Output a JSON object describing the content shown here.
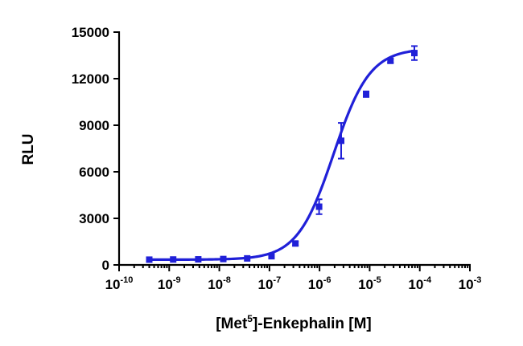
{
  "chart_data": {
    "type": "scatter",
    "xlabel_parts": {
      "pre": "[Met",
      "sup": "5",
      "post": "]-Enkephalin [M]"
    },
    "ylabel": "RLU",
    "x_scale": "log",
    "xlim": [
      1e-10,
      0.001
    ],
    "ylim": [
      0,
      15000
    ],
    "y_ticks": [
      {
        "value": 0,
        "label": "0"
      },
      {
        "value": 3000,
        "label": "3000"
      },
      {
        "value": 6000,
        "label": "6000"
      },
      {
        "value": 9000,
        "label": "9000"
      },
      {
        "value": 12000,
        "label": "12000"
      },
      {
        "value": 15000,
        "label": "15000"
      }
    ],
    "x_ticks": [
      {
        "value": 1e-10,
        "base": "10",
        "exp": "-10"
      },
      {
        "value": 1e-09,
        "base": "10",
        "exp": "-9"
      },
      {
        "value": 1e-08,
        "base": "10",
        "exp": "-8"
      },
      {
        "value": 1e-07,
        "base": "10",
        "exp": "-7"
      },
      {
        "value": 1e-06,
        "base": "10",
        "exp": "-6"
      },
      {
        "value": 1e-05,
        "base": "10",
        "exp": "-5"
      },
      {
        "value": 0.0001,
        "base": "10",
        "exp": "-4"
      },
      {
        "value": 0.001,
        "base": "10",
        "exp": "-3"
      }
    ],
    "series": [
      {
        "color": "#2020d8",
        "marker": "square",
        "points": [
          {
            "x": 4e-10,
            "y": 340,
            "err": 0
          },
          {
            "x": 1.2e-09,
            "y": 350,
            "err": 0
          },
          {
            "x": 3.8e-09,
            "y": 360,
            "err": 0
          },
          {
            "x": 1.2e-08,
            "y": 380,
            "err": 0
          },
          {
            "x": 3.6e-08,
            "y": 420,
            "err": 0
          },
          {
            "x": 1.1e-07,
            "y": 560,
            "err": 0
          },
          {
            "x": 3.3e-07,
            "y": 1380,
            "err": 120
          },
          {
            "x": 9.8e-07,
            "y": 3750,
            "err": 480
          },
          {
            "x": 2.7e-06,
            "y": 8000,
            "err": 1150
          },
          {
            "x": 8.5e-06,
            "y": 11000,
            "err": 180
          },
          {
            "x": 2.6e-05,
            "y": 13150,
            "err": 120
          },
          {
            "x": 7.8e-05,
            "y": 13650,
            "err": 450
          }
        ],
        "fit": {
          "bottom": 340,
          "top": 13950,
          "log_ec50": -5.72,
          "hill": 1.2,
          "x_from": 4e-10,
          "x_to": 7.8e-05
        }
      }
    ],
    "grid": false,
    "legend": "none"
  }
}
